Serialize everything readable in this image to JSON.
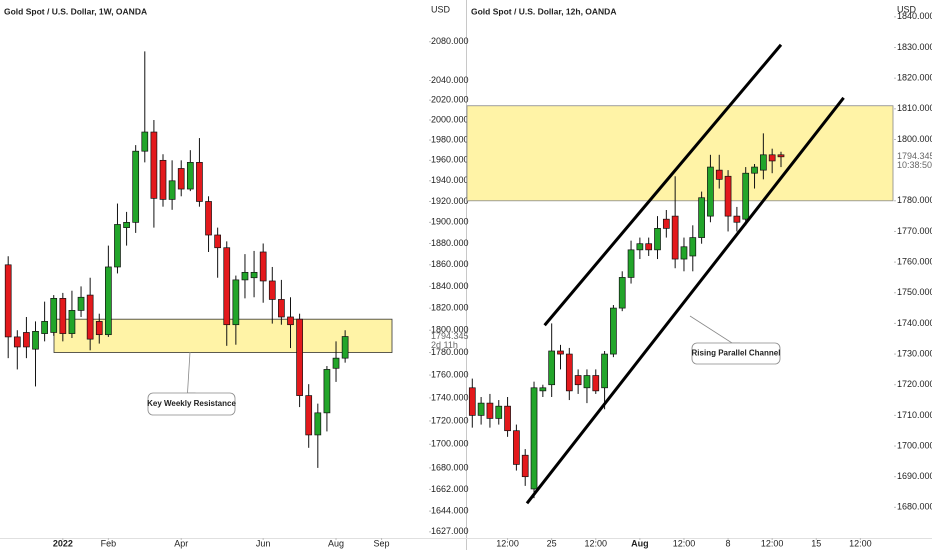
{
  "chart_data": [
    {
      "type": "candlestick",
      "title": "Gold Spot / U.S. Dollar, 1W, OANDA",
      "axis_label": "USD",
      "log_scale": true,
      "ylim": [
        1622,
        2124
      ],
      "yticks": [
        {
          "value": 2080,
          "label": "2080.000"
        },
        {
          "value": 2040,
          "label": "2040.000"
        },
        {
          "value": 2020,
          "label": "2020.000"
        },
        {
          "value": 2000,
          "label": "2000.000"
        },
        {
          "value": 1980,
          "label": "1980.000"
        },
        {
          "value": 1960,
          "label": "1960.000"
        },
        {
          "value": 1940,
          "label": "1940.000"
        },
        {
          "value": 1920,
          "label": "1920.000"
        },
        {
          "value": 1900,
          "label": "1900.000"
        },
        {
          "value": 1880,
          "label": "1880.000"
        },
        {
          "value": 1860,
          "label": "1860.000"
        },
        {
          "value": 1840,
          "label": "1840.000"
        },
        {
          "value": 1820,
          "label": "1820.000"
        },
        {
          "value": 1800,
          "label": "1800.000"
        },
        {
          "value": 1780,
          "label": "1780.000"
        },
        {
          "value": 1760,
          "label": "1760.000"
        },
        {
          "value": 1740,
          "label": "1740.000"
        },
        {
          "value": 1720,
          "label": "1720.000"
        },
        {
          "value": 1700,
          "label": "1700.000"
        },
        {
          "value": 1680,
          "label": "1680.000"
        },
        {
          "value": 1662,
          "label": "1662.000"
        },
        {
          "value": 1644,
          "label": "1644.000"
        },
        {
          "value": 1627,
          "label": "1627.000"
        }
      ],
      "xlim": [
        -0.9,
        46.1
      ],
      "xticks": [
        {
          "value": 6,
          "label": "2022",
          "bold": true
        },
        {
          "value": 11,
          "label": "Feb"
        },
        {
          "value": 19,
          "label": "Apr"
        },
        {
          "value": 28,
          "label": "Jun"
        },
        {
          "value": 36,
          "label": "Aug"
        },
        {
          "value": 41,
          "label": "Sep"
        }
      ],
      "open": [
        1860,
        1794,
        1798,
        1783,
        1797,
        1798,
        1829,
        1797,
        1818,
        1832,
        1808,
        1796,
        1858,
        1895,
        1900,
        1969,
        1988,
        1960,
        1922,
        1952,
        1932,
        1958,
        1920,
        1888,
        1876,
        1805,
        1846,
        1848,
        1872,
        1845,
        1828,
        1812,
        1810,
        1742,
        1708,
        1727,
        1766,
        1775
      ],
      "high": [
        1868,
        1800,
        1812,
        1808,
        1826,
        1832,
        1834,
        1836,
        1840,
        1848,
        1815,
        1878,
        1918,
        1910,
        1975,
        2070,
        2000,
        1966,
        1960,
        1960,
        1970,
        1982,
        1925,
        1895,
        1882,
        1850,
        1870,
        1873,
        1880,
        1858,
        1846,
        1830,
        1815,
        1752,
        1735,
        1768,
        1790,
        1800
      ],
      "low": [
        1775,
        1765,
        1775,
        1750,
        1790,
        1795,
        1790,
        1793,
        1812,
        1782,
        1788,
        1794,
        1852,
        1878,
        1890,
        1958,
        1895,
        1915,
        1912,
        1925,
        1930,
        1915,
        1872,
        1848,
        1786,
        1787,
        1829,
        1830,
        1825,
        1806,
        1805,
        1784,
        1732,
        1697,
        1680,
        1711,
        1754,
        1771
      ],
      "close": [
        1794,
        1785,
        1785,
        1799,
        1808,
        1829,
        1797,
        1818,
        1830,
        1792,
        1796,
        1858,
        1898,
        1900,
        1969,
        1988,
        1923,
        1922,
        1940,
        1932,
        1958,
        1920,
        1888,
        1876,
        1805,
        1846,
        1853,
        1853,
        1845,
        1828,
        1812,
        1805,
        1742,
        1708,
        1727,
        1765,
        1775,
        1794.345
      ],
      "up_color": "#22a52a",
      "down_color": "#e3191c",
      "zone": [
        1780,
        1810
      ],
      "zone_color": "#fff3a6",
      "annotation": {
        "text": "Key Weekly Resistance"
      },
      "last_price": {
        "value": 1794.345,
        "label": "1794.345"
      },
      "countdown": "2d 11h"
    },
    {
      "type": "candlestick",
      "title": "Gold Spot / U.S. Dollar, 12h, OANDA",
      "axis_label": "USD",
      "log_scale": false,
      "ylim": [
        1670,
        1845.5
      ],
      "yticks": [
        {
          "value": 1840,
          "label": "1840.000"
        },
        {
          "value": 1830,
          "label": "1830.000"
        },
        {
          "value": 1820,
          "label": "1820.000"
        },
        {
          "value": 1810,
          "label": "1810.000"
        },
        {
          "value": 1800,
          "label": "1800.000"
        },
        {
          "value": 1780,
          "label": "1780.000"
        },
        {
          "value": 1770,
          "label": "1770.000"
        },
        {
          "value": 1760,
          "label": "1760.000"
        },
        {
          "value": 1750,
          "label": "1750.000"
        },
        {
          "value": 1740,
          "label": "1740.000"
        },
        {
          "value": 1730,
          "label": "1730.000"
        },
        {
          "value": 1720,
          "label": "1720.000"
        },
        {
          "value": 1710,
          "label": "1710.000"
        },
        {
          "value": 1700,
          "label": "1700.000"
        },
        {
          "value": 1690,
          "label": "1690.000"
        },
        {
          "value": 1680,
          "label": "1680.000"
        }
      ],
      "xlim": [
        -0.6,
        47.7
      ],
      "xticks": [
        {
          "value": 4,
          "label": "12:00"
        },
        {
          "value": 9,
          "label": "25"
        },
        {
          "value": 14,
          "label": "12:00"
        },
        {
          "value": 19,
          "label": "Aug",
          "bold": true
        },
        {
          "value": 24,
          "label": "12:00"
        },
        {
          "value": 29,
          "label": "8"
        },
        {
          "value": 34,
          "label": "12:00"
        },
        {
          "value": 39,
          "label": "15"
        },
        {
          "value": 44,
          "label": "12:00"
        }
      ],
      "open": [
        1719,
        1710,
        1714,
        1709,
        1713,
        1705,
        1697,
        1686,
        1718,
        1720,
        1731,
        1730,
        1723,
        1719,
        1723,
        1719,
        1730,
        1745,
        1755,
        1764,
        1766,
        1764,
        1774,
        1775,
        1761,
        1762,
        1768,
        1775,
        1790,
        1788,
        1775,
        1774,
        1789,
        1790,
        1795,
        1795
      ],
      "high": [
        1722,
        1716,
        1717,
        1715,
        1716,
        1707,
        1699,
        1721,
        1720,
        1740,
        1733,
        1732,
        1725,
        1725,
        1725,
        1731,
        1746,
        1757,
        1767,
        1768,
        1768,
        1775,
        1777,
        1788,
        1768,
        1772,
        1783,
        1795,
        1795,
        1790,
        1778,
        1791,
        1792,
        1802,
        1797,
        1796
      ],
      "low": [
        1706,
        1707,
        1706,
        1707,
        1703,
        1692,
        1687,
        1683,
        1716,
        1716,
        1725,
        1715,
        1717,
        1714,
        1717,
        1712,
        1729,
        1744,
        1753,
        1761,
        1762,
        1761,
        1768,
        1758,
        1757,
        1757,
        1766,
        1773,
        1784,
        1770,
        1770,
        1772,
        1784,
        1787,
        1789,
        1791
      ],
      "close": [
        1710,
        1714,
        1709,
        1713,
        1705,
        1694,
        1690,
        1719,
        1719,
        1731,
        1730,
        1718,
        1720,
        1723,
        1718,
        1730,
        1745,
        1755,
        1764,
        1766,
        1764,
        1771,
        1771,
        1761,
        1765,
        1768,
        1781,
        1791,
        1787,
        1775,
        1773,
        1789,
        1791,
        1795,
        1793,
        1794.345
      ],
      "up_color": "#22a52a",
      "down_color": "#e3191c",
      "zone": [
        1780,
        1811
      ],
      "zone_color": "#fff3a6",
      "lines": [
        {
          "x": [
            8.2,
            35
          ],
          "y": [
            1739.4,
            1830.9
          ]
        },
        {
          "x": [
            6.2,
            42.1
          ],
          "y": [
            1681.3,
            1813.6
          ]
        }
      ],
      "annotation": {
        "text": "Rising Parallel Channel"
      },
      "last_price": {
        "value": 1794.345,
        "label": "1794.345"
      },
      "countdown": "10:38:50"
    }
  ]
}
